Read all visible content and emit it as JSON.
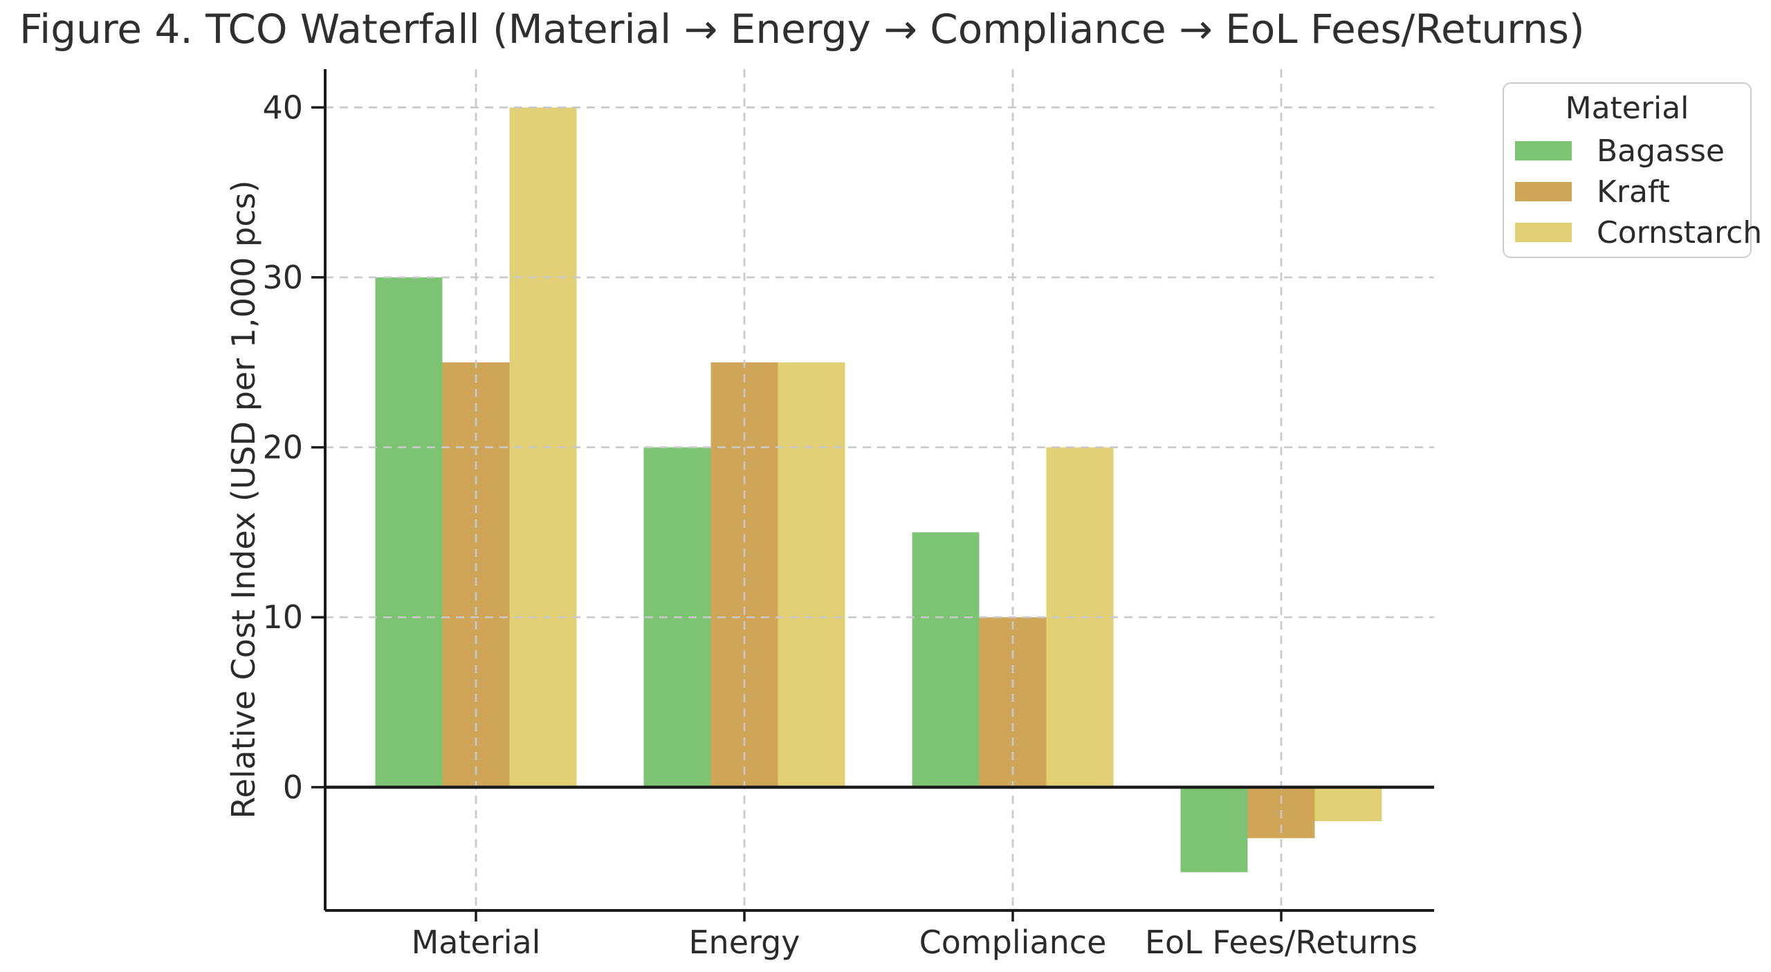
{
  "chart_data": {
    "type": "bar",
    "title": "Figure 4. TCO Waterfall (Material → Energy → Compliance → EoL Fees/Returns)",
    "categories": [
      "Material",
      "Energy",
      "Compliance",
      "EoL Fees/Returns"
    ],
    "series": [
      {
        "name": "Bagasse",
        "color": "#7cc474",
        "values": [
          30,
          20,
          15,
          -5
        ]
      },
      {
        "name": "Kraft",
        "color": "#cfa557",
        "values": [
          25,
          25,
          10,
          -3
        ]
      },
      {
        "name": "Cornstarch",
        "color": "#e2d077",
        "values": [
          40,
          25,
          20,
          -2
        ]
      }
    ],
    "xlabel": "",
    "ylabel": "Relative Cost Index (USD per 1,000 pcs)",
    "yticks": [
      0,
      10,
      20,
      30,
      40
    ],
    "ylim": [
      -7.25,
      42.25
    ],
    "grid": {
      "visible": true,
      "style": "dashed",
      "axes": "both",
      "color": "#c9c9c9",
      "drawn_over_bars": true
    },
    "zero_line": {
      "visible": true,
      "color": "#1a1a1a"
    },
    "legend": {
      "title": "Material",
      "position": "upper-right-outside"
    },
    "style": {
      "spine_color": "#1a1a1a",
      "text_color": "#2b2b2b",
      "background": "#ffffff",
      "visible_spines": [
        "left",
        "bottom"
      ]
    }
  }
}
